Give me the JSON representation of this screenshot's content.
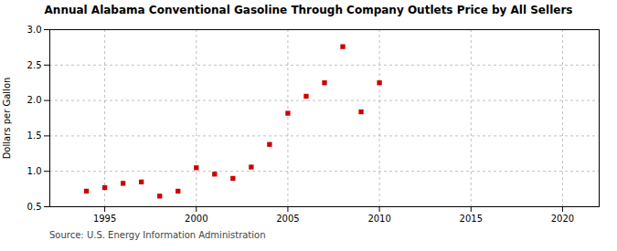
{
  "chart_data": {
    "type": "scatter",
    "title": "Annual Alabama Conventional Gasoline Through Company Outlets Price by All Sellers",
    "ylabel": "Dollars per Gallon",
    "source": "Source: U.S. Energy Information Administration",
    "x": [
      1994,
      1995,
      1996,
      1997,
      1998,
      1999,
      2000,
      2001,
      2002,
      2003,
      2004,
      2005,
      2006,
      2007,
      2008,
      2009,
      2010
    ],
    "values": [
      0.72,
      0.77,
      0.83,
      0.85,
      0.65,
      0.72,
      1.05,
      0.96,
      0.9,
      1.06,
      1.38,
      1.82,
      2.06,
      2.25,
      2.76,
      1.84,
      2.25
    ],
    "color": "#cc0000",
    "marker": "square",
    "xlim": [
      1992,
      2022
    ],
    "ylim": [
      0.5,
      3.0
    ],
    "xticks": [
      1995,
      2000,
      2005,
      2010,
      2015,
      2020
    ],
    "yticks": [
      0.5,
      {
        "value": 1.0,
        "label": "1.0"
      },
      1.5,
      {
        "value": 2.0,
        "label": "2.0"
      },
      2.5,
      {
        "value": 3.0,
        "label": "3.0"
      }
    ],
    "grid": true
  }
}
